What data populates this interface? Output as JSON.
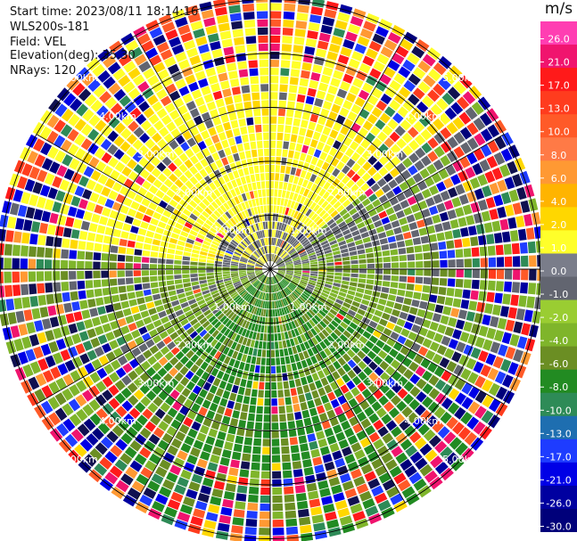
{
  "header": {
    "start_time": "Start time: 2023/08/11 18:14:16",
    "instrument": "WLS200s-181",
    "field": "Field: VEL",
    "elevation": "Elevation(deg): 35.30",
    "nrays": "NRays: 120"
  },
  "colorbar": {
    "unit": "m/s",
    "ticks": [
      "26.0",
      "21.0",
      "17.0",
      "13.0",
      "10.0",
      "8.0",
      "6.0",
      "4.0",
      "2.0",
      "1.0",
      "0.0",
      "-1.0",
      "-2.0",
      "-4.0",
      "-6.0",
      "-8.0",
      "-10.0",
      "-13.0",
      "-17.0",
      "-21.0",
      "-26.0",
      "-30.0"
    ],
    "colors": [
      "#ff3eb2",
      "#f0146e",
      "#ff1a1a",
      "#ff3c1e",
      "#ff5a28",
      "#ff7a46",
      "#ff9933",
      "#ffb400",
      "#ffd700",
      "#ffff2a",
      "#7a7d8a",
      "#626570",
      "#9acd32",
      "#7fb52b",
      "#6b8e23",
      "#228b22",
      "#2e8b57",
      "#1e6eb0",
      "#1e3cff",
      "#0000e6",
      "#0000a0",
      "#00007a",
      "#101050"
    ]
  },
  "chart_data": {
    "type": "ppi",
    "field": "VEL",
    "unit": "m/s",
    "nrays": 120,
    "range_rings_km": [
      1.0,
      2.0,
      3.0,
      4.0,
      5.0
    ],
    "ring_labels": [
      "1.00km",
      "2.00km",
      "3.00km",
      "4.00km",
      "5.00km"
    ],
    "velocity_range": [
      -30.0,
      26.0
    ],
    "sectors": [
      {
        "azimuth_from_deg": 275,
        "azimuth_to_deg": 345,
        "dominant_velocity": 2.0
      },
      {
        "azimuth_from_deg": 345,
        "azimuth_to_deg": 50,
        "dominant_velocity": 2.0
      },
      {
        "azimuth_from_deg": 50,
        "azimuth_to_deg": 80,
        "dominant_velocity": 0.0
      },
      {
        "azimuth_from_deg": 80,
        "azimuth_to_deg": 120,
        "dominant_velocity": -2.0
      },
      {
        "azimuth_from_deg": 120,
        "azimuth_to_deg": 230,
        "dominant_velocity": -6.0
      },
      {
        "azimuth_from_deg": 230,
        "azimuth_to_deg": 275,
        "dominant_velocity": -2.0
      }
    ]
  }
}
